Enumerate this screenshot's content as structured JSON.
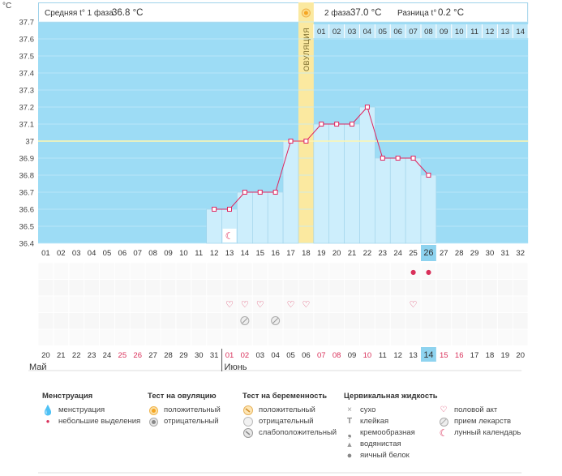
{
  "header": {
    "unit": "°C",
    "phase1_label": "Средняя t° 1 фаза",
    "phase1_value": "36.8 °C",
    "phase2_label": "2 фаза",
    "phase2_value": "37.0 °C",
    "diff_label": "Разница t°",
    "diff_value": "0.2 °C"
  },
  "ovulation_label": "ОВУЛЯЦИЯ",
  "chart_data": {
    "type": "line",
    "y_ticks": [
      "36.4",
      "36.5",
      "36.6",
      "36.7",
      "36.8",
      "36.9",
      "37",
      "37.1",
      "37.2",
      "37.3",
      "37.4",
      "37.5",
      "37.6",
      "37.7"
    ],
    "ylim": [
      36.4,
      37.7
    ],
    "coverline": 37.0,
    "cycle_days": [
      "01",
      "02",
      "03",
      "04",
      "05",
      "06",
      "07",
      "08",
      "09",
      "10",
      "11",
      "12",
      "13",
      "14",
      "15",
      "16",
      "17",
      "18",
      "19",
      "20",
      "21",
      "22",
      "23",
      "24",
      "25",
      "26",
      "27",
      "28",
      "29",
      "30",
      "31",
      "32"
    ],
    "luteal_days": [
      "01",
      "02",
      "03",
      "04",
      "05",
      "06",
      "07",
      "08",
      "09",
      "10",
      "11",
      "12",
      "13",
      "14"
    ],
    "ovulation_day": 18,
    "current_day": 26,
    "temperatures": [
      {
        "day": 12,
        "t": 36.6
      },
      {
        "day": 13,
        "t": 36.6
      },
      {
        "day": 14,
        "t": 36.7
      },
      {
        "day": 15,
        "t": 36.7
      },
      {
        "day": 16,
        "t": 36.7
      },
      {
        "day": 17,
        "t": 37.0
      },
      {
        "day": 18,
        "t": 37.0
      },
      {
        "day": 19,
        "t": 37.1
      },
      {
        "day": 20,
        "t": 37.1
      },
      {
        "day": 21,
        "t": 37.1
      },
      {
        "day": 22,
        "t": 37.2
      },
      {
        "day": 23,
        "t": 36.9
      },
      {
        "day": 24,
        "t": 36.9
      },
      {
        "day": 25,
        "t": 36.9
      },
      {
        "day": 26,
        "t": 36.8
      }
    ]
  },
  "calendar": {
    "dates": [
      "20",
      "21",
      "22",
      "23",
      "24",
      "25",
      "26",
      "27",
      "28",
      "29",
      "30",
      "31",
      "01",
      "02",
      "03",
      "04",
      "05",
      "06",
      "07",
      "08",
      "09",
      "10",
      "11",
      "12",
      "13",
      "14",
      "15",
      "16",
      "17",
      "18",
      "19",
      "20"
    ],
    "red_indices": [
      5,
      6,
      12,
      13,
      18,
      19,
      21,
      26,
      27
    ],
    "today_index": 25,
    "month1": "Май",
    "month2": "Июнь"
  },
  "markers": {
    "moon_day": 13,
    "discharge_days": [
      25,
      26
    ],
    "intercourse_days": [
      13,
      14,
      15,
      17,
      18,
      25
    ],
    "pregnancy_test_days": [
      14,
      16
    ]
  },
  "legend": {
    "menstruation": {
      "title": "Менструация",
      "items": [
        "менструация",
        "небольшие выделения"
      ]
    },
    "ovulation_test": {
      "title": "Тест на овуляцию",
      "items": [
        "положительный",
        "отрицательный"
      ]
    },
    "pregnancy_test": {
      "title": "Тест на беременность",
      "items": [
        "положительный",
        "отрицательный",
        "слабоположительный"
      ]
    },
    "cervical": {
      "title": "Цервикальная жидкость",
      "items": [
        "сухо",
        "клейкая",
        "кремообразная",
        "водянистая",
        "яичный белок"
      ]
    },
    "other": {
      "items": [
        "половой акт",
        "прием лекарств",
        "лунный календарь"
      ]
    }
  },
  "colors": {
    "sky": "#9ddcf5",
    "bar": "#cdeefc",
    "bar_edge": "#9fd2ea",
    "line": "#e0245e",
    "ovulation": "#fbe9a0",
    "today": "#8ed3ef",
    "red": "#d9305a"
  }
}
